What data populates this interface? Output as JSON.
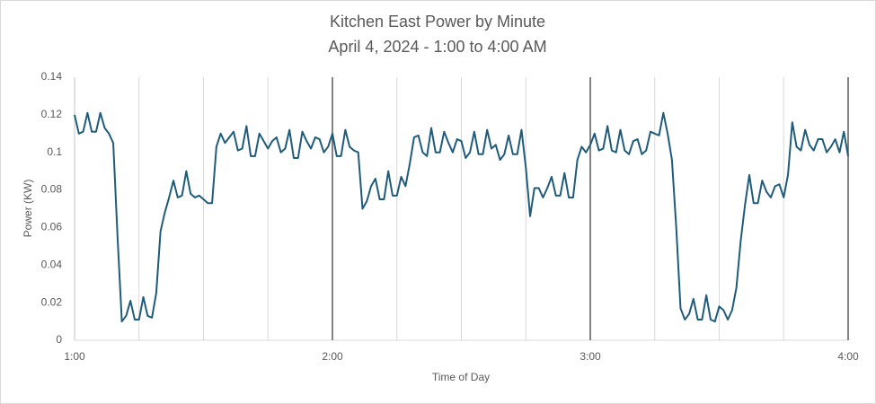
{
  "chart_data": {
    "type": "line",
    "title": "Kitchen East Power by Minute",
    "subtitle": "April 4, 2024 - 1:00 to 4:00 AM",
    "x_label": "Time of Day",
    "y_label": "Power (KW)",
    "color": "#1f5c7b",
    "xlim": [
      0,
      180
    ],
    "xticks": [
      {
        "value": 0,
        "label": "1:00"
      },
      {
        "value": 60,
        "label": "2:00"
      },
      {
        "value": 120,
        "label": "3:00"
      },
      {
        "value": 180,
        "label": "4:00"
      }
    ],
    "x_minor_grid": [
      15,
      30,
      45,
      75,
      90,
      105,
      135,
      150,
      165
    ],
    "ylim": [
      0,
      0.14
    ],
    "yticks": [
      0,
      0.02,
      0.04,
      0.06,
      0.08,
      0.1,
      0.12,
      0.14
    ],
    "x": [
      0,
      1,
      2,
      3,
      4,
      5,
      6,
      7,
      8,
      9,
      10,
      11,
      12,
      13,
      14,
      15,
      16,
      17,
      18,
      19,
      20,
      21,
      22,
      23,
      24,
      25,
      26,
      27,
      28,
      29,
      30,
      31,
      32,
      33,
      34,
      35,
      36,
      37,
      38,
      39,
      40,
      41,
      42,
      43,
      44,
      45,
      46,
      47,
      48,
      49,
      50,
      51,
      52,
      53,
      54,
      55,
      56,
      57,
      58,
      59,
      60,
      61,
      62,
      63,
      64,
      65,
      66,
      67,
      68,
      69,
      70,
      71,
      72,
      73,
      74,
      75,
      76,
      77,
      78,
      79,
      80,
      81,
      82,
      83,
      84,
      85,
      86,
      87,
      88,
      89,
      90,
      91,
      92,
      93,
      94,
      95,
      96,
      97,
      98,
      99,
      100,
      101,
      102,
      103,
      104,
      105,
      106,
      107,
      108,
      109,
      110,
      111,
      112,
      113,
      114,
      115,
      116,
      117,
      118,
      119,
      120,
      121,
      122,
      123,
      124,
      125,
      126,
      127,
      128,
      129,
      130,
      131,
      132,
      133,
      134,
      135,
      136,
      137,
      138,
      139,
      140,
      141,
      142,
      143,
      144,
      145,
      146,
      147,
      148,
      149,
      150,
      151,
      152,
      153,
      154,
      155,
      156,
      157,
      158,
      159,
      160,
      161,
      162,
      163,
      164,
      165,
      166,
      167,
      168,
      169,
      170,
      171,
      172,
      173,
      174,
      175,
      176,
      177,
      178,
      179,
      180
    ],
    "values": [
      0.12,
      0.11,
      0.111,
      0.121,
      0.111,
      0.111,
      0.121,
      0.113,
      0.11,
      0.105,
      0.055,
      0.01,
      0.013,
      0.021,
      0.011,
      0.011,
      0.023,
      0.013,
      0.012,
      0.025,
      0.058,
      0.068,
      0.076,
      0.085,
      0.076,
      0.077,
      0.09,
      0.078,
      0.076,
      0.077,
      0.075,
      0.073,
      0.073,
      0.103,
      0.11,
      0.105,
      0.108,
      0.111,
      0.101,
      0.102,
      0.114,
      0.098,
      0.098,
      0.11,
      0.106,
      0.102,
      0.106,
      0.108,
      0.1,
      0.102,
      0.112,
      0.097,
      0.097,
      0.111,
      0.106,
      0.102,
      0.108,
      0.107,
      0.1,
      0.103,
      0.11,
      0.098,
      0.098,
      0.112,
      0.103,
      0.101,
      0.1,
      0.07,
      0.074,
      0.082,
      0.086,
      0.075,
      0.075,
      0.09,
      0.077,
      0.077,
      0.087,
      0.082,
      0.094,
      0.108,
      0.109,
      0.1,
      0.098,
      0.113,
      0.1,
      0.1,
      0.111,
      0.105,
      0.1,
      0.107,
      0.106,
      0.097,
      0.1,
      0.111,
      0.099,
      0.099,
      0.112,
      0.102,
      0.104,
      0.096,
      0.099,
      0.109,
      0.099,
      0.099,
      0.112,
      0.092,
      0.066,
      0.081,
      0.081,
      0.076,
      0.081,
      0.087,
      0.077,
      0.077,
      0.089,
      0.076,
      0.076,
      0.096,
      0.103,
      0.1,
      0.104,
      0.11,
      0.101,
      0.102,
      0.114,
      0.101,
      0.1,
      0.112,
      0.101,
      0.099,
      0.106,
      0.107,
      0.099,
      0.101,
      0.111,
      0.11,
      0.109,
      0.121,
      0.11,
      0.096,
      0.06,
      0.017,
      0.011,
      0.014,
      0.022,
      0.011,
      0.011,
      0.024,
      0.011,
      0.01,
      0.018,
      0.016,
      0.011,
      0.016,
      0.028,
      0.053,
      0.072,
      0.088,
      0.073,
      0.073,
      0.085,
      0.079,
      0.076,
      0.082,
      0.083,
      0.076,
      0.088,
      0.116,
      0.103,
      0.101,
      0.112,
      0.104,
      0.101,
      0.107,
      0.107,
      0.1,
      0.103,
      0.107,
      0.1,
      0.111,
      0.098
    ]
  }
}
